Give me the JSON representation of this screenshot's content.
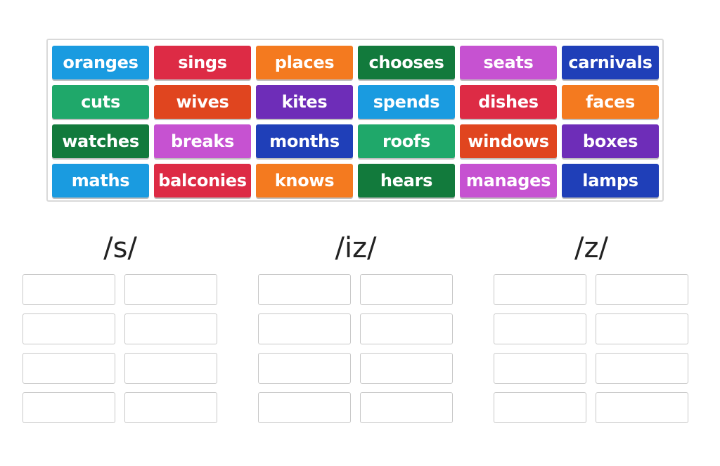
{
  "tiles": [
    {
      "label": "oranges",
      "color": "#1a9be0"
    },
    {
      "label": "sings",
      "color": "#dd2b45"
    },
    {
      "label": "places",
      "color": "#f47a1f"
    },
    {
      "label": "chooses",
      "color": "#127a3c"
    },
    {
      "label": "seats",
      "color": "#c652d1"
    },
    {
      "label": "carnivals",
      "color": "#1f3fb8"
    },
    {
      "label": "cuts",
      "color": "#1fa86a"
    },
    {
      "label": "wives",
      "color": "#e0451f"
    },
    {
      "label": "kites",
      "color": "#6e2db8"
    },
    {
      "label": "spends",
      "color": "#1a9be0"
    },
    {
      "label": "dishes",
      "color": "#dd2b45"
    },
    {
      "label": "faces",
      "color": "#f47a1f"
    },
    {
      "label": "watches",
      "color": "#127a3c"
    },
    {
      "label": "breaks",
      "color": "#c652d1"
    },
    {
      "label": "months",
      "color": "#1f3fb8"
    },
    {
      "label": "roofs",
      "color": "#1fa86a"
    },
    {
      "label": "windows",
      "color": "#e0451f"
    },
    {
      "label": "boxes",
      "color": "#6e2db8"
    },
    {
      "label": "maths",
      "color": "#1a9be0"
    },
    {
      "label": "balconies",
      "color": "#dd2b45"
    },
    {
      "label": "knows",
      "color": "#f47a1f"
    },
    {
      "label": "hears",
      "color": "#127a3c"
    },
    {
      "label": "manages",
      "color": "#c652d1"
    },
    {
      "label": "lamps",
      "color": "#1f3fb8"
    }
  ],
  "groups": [
    {
      "heading": "/s/"
    },
    {
      "heading": "/iz/"
    },
    {
      "heading": "/z/"
    }
  ],
  "slots_per_group": 8
}
